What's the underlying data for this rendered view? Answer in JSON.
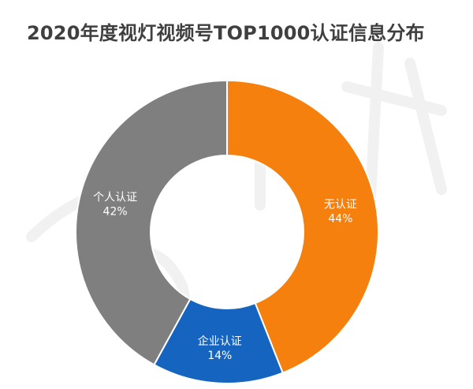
{
  "chart_data": {
    "type": "pie",
    "title": "2020年度视灯视频号TOP1000认证信息分布",
    "categories": [
      "无认证",
      "企业认证",
      "个人认证"
    ],
    "values": [
      44,
      14,
      42
    ],
    "value_labels": [
      "44%",
      "14%",
      "42%"
    ],
    "colors": [
      "#F5800E",
      "#1565C0",
      "#7F7F7F"
    ],
    "donut": true,
    "legend": "none"
  }
}
